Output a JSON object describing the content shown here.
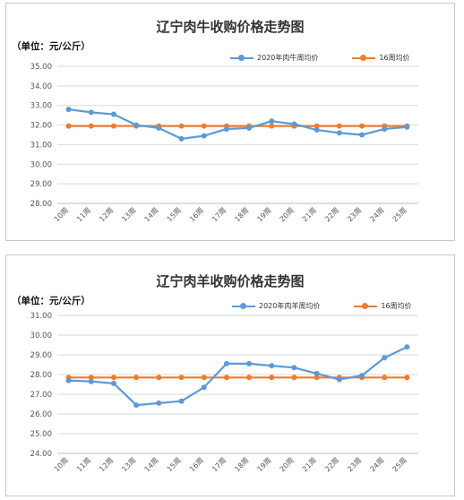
{
  "colors": {
    "series_2020": "#5b9bd5",
    "series_avg16": "#ed7d31",
    "grid": "#d9d9d9",
    "axis": "#bfbfbf"
  },
  "chart_data": [
    {
      "type": "line",
      "title": "辽宁肉牛收购价格走势图",
      "unit": "（单位：元/公斤）",
      "xlabel": "",
      "ylabel": "",
      "ylim": [
        28.0,
        35.0
      ],
      "yticks": [
        "28.00",
        "29.00",
        "30.00",
        "31.00",
        "32.00",
        "33.00",
        "34.00",
        "35.00"
      ],
      "categories": [
        "10周",
        "11周",
        "12周",
        "13周",
        "14周",
        "15周",
        "16周",
        "17周",
        "18周",
        "19周",
        "20周",
        "21周",
        "22周",
        "23周",
        "24周",
        "25周"
      ],
      "series": [
        {
          "name": "2020年肉牛周均价",
          "values": [
            32.8,
            32.65,
            32.55,
            32.0,
            31.85,
            31.3,
            31.45,
            31.8,
            31.85,
            32.2,
            32.05,
            31.75,
            31.6,
            31.5,
            31.8,
            31.9
          ]
        },
        {
          "name": "16周均价",
          "values": [
            31.95,
            31.95,
            31.95,
            31.95,
            31.95,
            31.95,
            31.95,
            31.95,
            31.95,
            31.95,
            31.95,
            31.95,
            31.95,
            31.95,
            31.95,
            31.95
          ]
        }
      ],
      "grid": true,
      "legend_position": "top-right"
    },
    {
      "type": "line",
      "title": "辽宁肉羊收购价格走势图",
      "unit": "（单位：元/公斤）",
      "xlabel": "",
      "ylabel": "",
      "ylim": [
        24.0,
        31.0
      ],
      "yticks": [
        "24.00",
        "25.00",
        "26.00",
        "27.00",
        "28.00",
        "29.00",
        "30.00",
        "31.00"
      ],
      "categories": [
        "10周",
        "11周",
        "12周",
        "13周",
        "14周",
        "15周",
        "16周",
        "17周",
        "18周",
        "19周",
        "20周",
        "21周",
        "22周",
        "23周",
        "24周",
        "25周"
      ],
      "series": [
        {
          "name": "2020年肉羊周均价",
          "values": [
            27.7,
            27.65,
            27.55,
            26.45,
            26.55,
            26.65,
            27.35,
            28.55,
            28.55,
            28.45,
            28.35,
            28.05,
            27.75,
            27.95,
            28.85,
            29.4
          ]
        },
        {
          "name": "16周均价",
          "values": [
            27.85,
            27.85,
            27.85,
            27.85,
            27.85,
            27.85,
            27.85,
            27.85,
            27.85,
            27.85,
            27.85,
            27.85,
            27.85,
            27.85,
            27.85,
            27.85
          ]
        }
      ],
      "grid": true,
      "legend_position": "top-right"
    }
  ]
}
